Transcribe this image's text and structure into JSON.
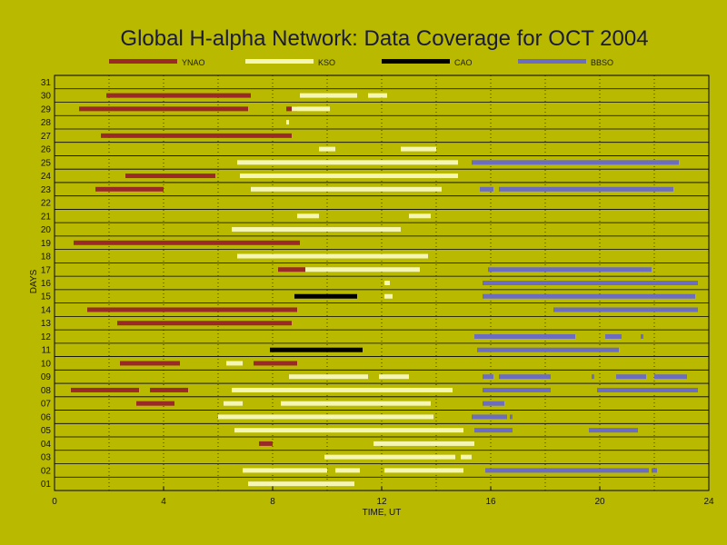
{
  "chart_data": {
    "type": "bar",
    "title": "Global H-alpha Network: Data Coverage for OCT 2004",
    "xlabel": "TIME, UT",
    "ylabel": "DAYS",
    "xlim": [
      0,
      24
    ],
    "ylim": [
      0.5,
      31.5
    ],
    "xticks": [
      0,
      4,
      8,
      12,
      16,
      20,
      24
    ],
    "yticks": [
      "01",
      "02",
      "03",
      "04",
      "05",
      "06",
      "07",
      "08",
      "09",
      "10",
      "11",
      "12",
      "13",
      "14",
      "15",
      "16",
      "17",
      "18",
      "19",
      "20",
      "21",
      "22",
      "23",
      "24",
      "25",
      "26",
      "27",
      "28",
      "29",
      "30",
      "31"
    ],
    "grid": true,
    "legend_position": "top",
    "series": [
      {
        "name": "YNAO",
        "color": "#9a2a28",
        "segments": [
          [
            4,
            7.5,
            8.0
          ],
          [
            7,
            3.0,
            4.4
          ],
          [
            8,
            0.6,
            3.1
          ],
          [
            8,
            3.5,
            4.9
          ],
          [
            10,
            2.4,
            4.6
          ],
          [
            10,
            7.3,
            8.9
          ],
          [
            13,
            2.3,
            8.7
          ],
          [
            14,
            1.2,
            8.9
          ],
          [
            17,
            8.2,
            9.2
          ],
          [
            19,
            0.7,
            9.0
          ],
          [
            23,
            1.5,
            4.0
          ],
          [
            24,
            2.6,
            5.9
          ],
          [
            27,
            1.7,
            8.7
          ],
          [
            29,
            0.9,
            7.1
          ],
          [
            29,
            8.5,
            8.9
          ],
          [
            30,
            1.9,
            7.2
          ]
        ]
      },
      {
        "name": "KSO",
        "color": "#f5f5b4",
        "segments": [
          [
            1,
            7.1,
            11.0
          ],
          [
            2,
            6.9,
            10.0
          ],
          [
            2,
            10.3,
            11.2
          ],
          [
            2,
            12.1,
            15.0
          ],
          [
            3,
            9.9,
            14.7
          ],
          [
            3,
            14.9,
            15.3
          ],
          [
            4,
            11.7,
            15.4
          ],
          [
            5,
            6.6,
            15.0
          ],
          [
            6,
            6.0,
            13.9
          ],
          [
            7,
            6.2,
            6.9
          ],
          [
            7,
            8.3,
            13.8
          ],
          [
            8,
            6.5,
            14.6
          ],
          [
            9,
            8.6,
            11.5
          ],
          [
            9,
            11.9,
            13.0
          ],
          [
            10,
            6.3,
            6.9
          ],
          [
            15,
            12.1,
            12.4
          ],
          [
            16,
            12.1,
            12.3
          ],
          [
            17,
            9.2,
            13.4
          ],
          [
            18,
            6.7,
            13.7
          ],
          [
            20,
            6.5,
            12.7
          ],
          [
            21,
            8.9,
            9.7
          ],
          [
            21,
            13.0,
            13.8
          ],
          [
            23,
            7.2,
            14.2
          ],
          [
            24,
            6.8,
            14.8
          ],
          [
            25,
            6.7,
            14.8
          ],
          [
            26,
            9.7,
            10.3
          ],
          [
            26,
            12.7,
            14.0
          ],
          [
            28,
            8.5,
            8.6
          ],
          [
            29,
            8.7,
            10.1
          ],
          [
            30,
            9.0,
            11.1
          ],
          [
            30,
            11.5,
            12.2
          ]
        ]
      },
      {
        "name": "CAO",
        "color": "#000000",
        "segments": [
          [
            11,
            7.9,
            11.3
          ],
          [
            15,
            8.8,
            11.1
          ]
        ]
      },
      {
        "name": "BBSO",
        "color": "#6c6cc0",
        "segments": [
          [
            2,
            15.8,
            21.8
          ],
          [
            2,
            21.9,
            22.1
          ],
          [
            5,
            15.4,
            16.8
          ],
          [
            5,
            19.6,
            21.4
          ],
          [
            6,
            15.3,
            16.6
          ],
          [
            6,
            16.7,
            16.8
          ],
          [
            7,
            15.7,
            16.5
          ],
          [
            8,
            15.7,
            18.2
          ],
          [
            8,
            19.9,
            23.6
          ],
          [
            9,
            15.7,
            16.1
          ],
          [
            9,
            16.3,
            18.2
          ],
          [
            9,
            19.7,
            19.8
          ],
          [
            9,
            20.6,
            21.7
          ],
          [
            9,
            22.0,
            23.2
          ],
          [
            11,
            15.5,
            20.7
          ],
          [
            12,
            15.4,
            19.1
          ],
          [
            12,
            20.2,
            20.8
          ],
          [
            12,
            21.5,
            21.6
          ],
          [
            14,
            18.3,
            23.6
          ],
          [
            15,
            15.7,
            23.5
          ],
          [
            16,
            15.7,
            23.6
          ],
          [
            17,
            15.9,
            21.9
          ],
          [
            23,
            15.6,
            16.1
          ],
          [
            23,
            16.3,
            22.7
          ],
          [
            25,
            15.3,
            22.9
          ]
        ]
      }
    ]
  }
}
